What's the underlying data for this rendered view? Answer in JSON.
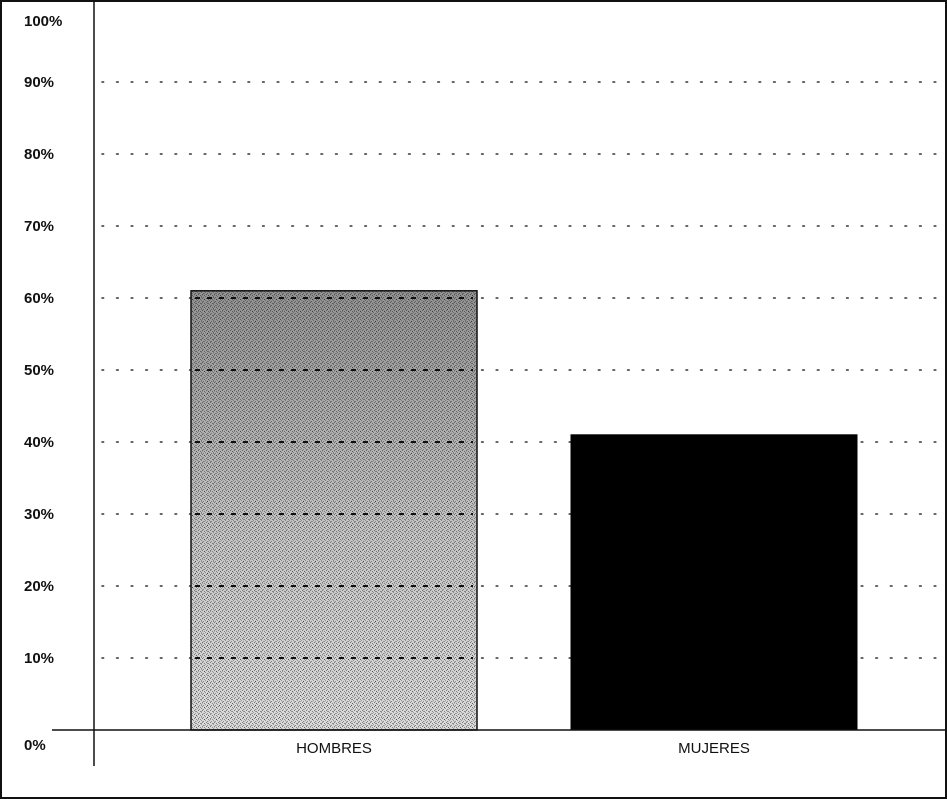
{
  "chart_data": {
    "type": "bar",
    "title": "",
    "xlabel": "",
    "ylabel": "",
    "categories": [
      "HOMBRES",
      "MUJERES"
    ],
    "values": [
      61,
      41
    ],
    "ylim": [
      0,
      100
    ],
    "yticks": [
      0,
      10,
      20,
      30,
      40,
      50,
      60,
      70,
      80,
      90,
      100
    ],
    "ytick_labels": [
      "0%",
      "10%",
      "20%",
      "30%",
      "40%",
      "50%",
      "60%",
      "70%",
      "80%",
      "90%",
      "100%"
    ],
    "grid": "dotted-horizontal",
    "legend": "none",
    "colors": {
      "HOMBRES": "#e6e6e6",
      "MUJERES": "#000000",
      "axis": "#111111",
      "grid": "#333333"
    }
  }
}
